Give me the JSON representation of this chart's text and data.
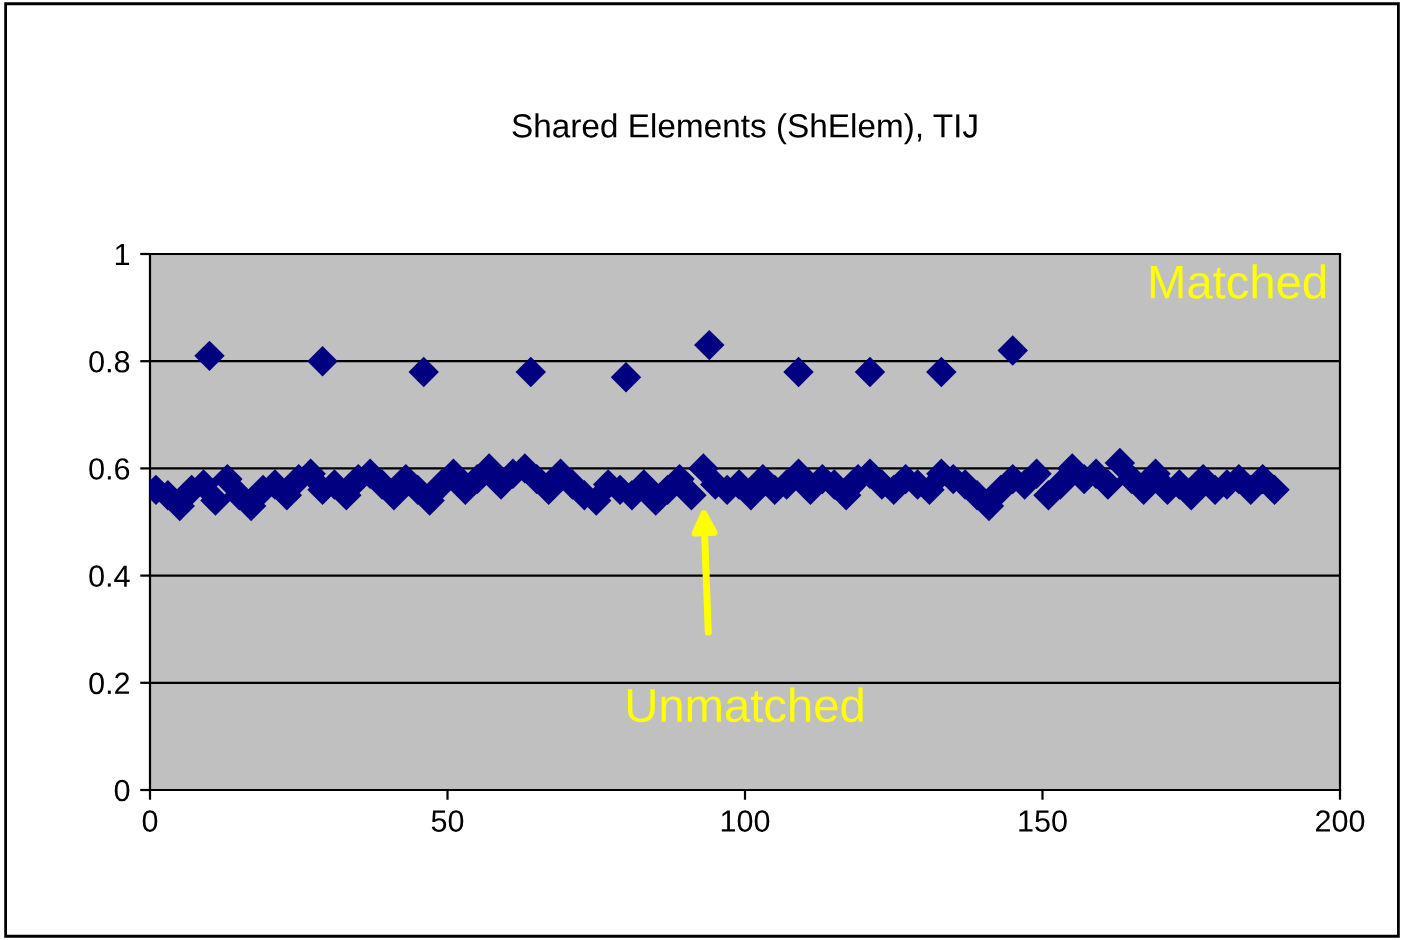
{
  "chart_data": {
    "type": "scatter",
    "title": "Shared Elements (ShElem), TIJ",
    "series": [
      {
        "color": "#000080",
        "x": [
          10,
          29,
          46,
          64,
          80,
          94,
          109,
          121,
          133,
          145
        ],
        "values": [
          0.81,
          0.8,
          0.78,
          0.78,
          0.77,
          0.83,
          0.78,
          0.78,
          0.78,
          0.82
        ]
      },
      {
        "color": "#000080",
        "x": [
          1,
          3,
          5,
          7,
          9,
          11,
          13,
          15,
          17,
          19,
          21,
          23,
          25,
          27,
          29,
          31,
          33,
          35,
          37,
          39,
          41,
          43,
          45,
          47,
          49,
          51,
          53,
          55,
          57,
          59,
          61,
          63,
          65,
          67,
          69,
          71,
          73,
          75,
          77,
          79,
          81,
          83,
          85,
          87,
          89,
          91,
          93,
          95,
          97,
          99,
          101,
          103,
          105,
          107,
          109,
          111,
          113,
          115,
          117,
          119,
          121,
          123,
          125,
          127,
          129,
          131,
          133,
          135,
          137,
          139,
          141,
          143,
          145,
          147,
          149,
          151,
          153,
          155,
          157,
          159,
          161,
          163,
          165,
          167,
          169,
          171,
          173,
          175,
          177,
          179,
          181,
          183,
          185,
          187,
          189
        ],
        "values": [
          0.56,
          0.55,
          0.53,
          0.56,
          0.57,
          0.54,
          0.58,
          0.55,
          0.53,
          0.56,
          0.57,
          0.55,
          0.58,
          0.59,
          0.56,
          0.57,
          0.55,
          0.58,
          0.59,
          0.57,
          0.55,
          0.58,
          0.56,
          0.54,
          0.57,
          0.59,
          0.56,
          0.58,
          0.6,
          0.57,
          0.59,
          0.6,
          0.58,
          0.56,
          0.59,
          0.57,
          0.55,
          0.54,
          0.57,
          0.56,
          0.55,
          0.57,
          0.54,
          0.56,
          0.58,
          0.55,
          0.6,
          0.57,
          0.56,
          0.57,
          0.55,
          0.58,
          0.56,
          0.57,
          0.59,
          0.56,
          0.58,
          0.57,
          0.55,
          0.58,
          0.59,
          0.57,
          0.56,
          0.58,
          0.57,
          0.56,
          0.59,
          0.58,
          0.57,
          0.55,
          0.53,
          0.56,
          0.58,
          0.57,
          0.59,
          0.55,
          0.57,
          0.6,
          0.58,
          0.59,
          0.57,
          0.61,
          0.58,
          0.56,
          0.59,
          0.56,
          0.57,
          0.55,
          0.58,
          0.56,
          0.57,
          0.58,
          0.56,
          0.58,
          0.56
        ]
      }
    ],
    "xlim": [
      0,
      200
    ],
    "xticks": [
      0,
      50,
      100,
      150,
      200
    ],
    "ylim": [
      0,
      1
    ],
    "yticks": [
      0,
      0.2,
      0.4,
      0.6,
      0.8,
      1
    ],
    "grid": "y",
    "marker": "diamond",
    "legend": false,
    "annotations": [
      "Matched",
      "Unmatched"
    ]
  }
}
